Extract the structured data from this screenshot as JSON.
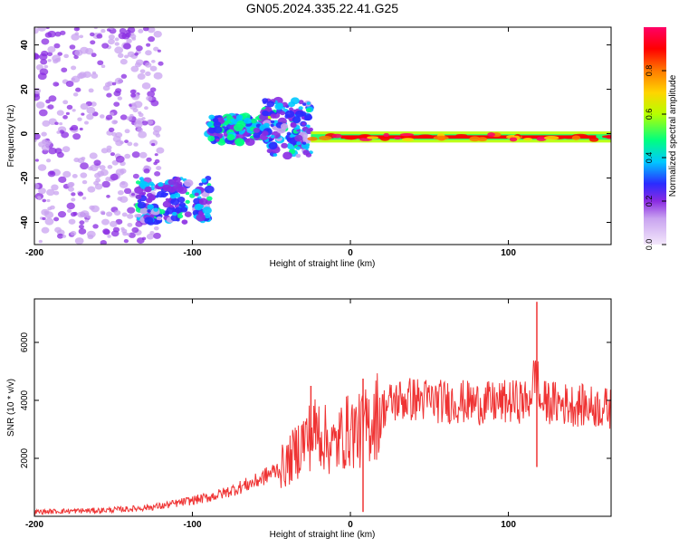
{
  "title": "GN05.2024.335.22.41.G25",
  "colors": {
    "signal_line": "#ef3333",
    "background": "#ffffff",
    "axis": "#000000",
    "colormap": [
      "#f3e7fb",
      "#c9a3f0",
      "#8a2be2",
      "#2b2bff",
      "#00c8ff",
      "#00ff7f",
      "#b6ff00",
      "#ffd400",
      "#ff7a00",
      "#ff0000",
      "#ff0066"
    ]
  },
  "chart_data": [
    {
      "type": "heatmap",
      "title": "GN05.2024.335.22.41.G25",
      "xlabel": "Height of straight line (km)",
      "ylabel": "Frequency (Hz)",
      "xlim": [
        -200,
        165
      ],
      "ylim": [
        -50,
        48
      ],
      "x_ticks": [
        -200,
        -100,
        0,
        100
      ],
      "y_ticks": [
        -40,
        -20,
        0,
        20,
        40
      ],
      "colorbar": {
        "label": "Normalized spectral amplitude",
        "range": [
          0,
          1
        ],
        "ticks": [
          "0.0",
          "0.2",
          "0.4",
          "0.6",
          "0.8"
        ],
        "tick_values": [
          0,
          0.2,
          0.4,
          0.6,
          0.8
        ]
      },
      "regions": [
        {
          "x": [
            -200,
            -120
          ],
          "y": [
            -50,
            48
          ],
          "amplitude": 0.1,
          "note": "scattered noise"
        },
        {
          "x": [
            -135,
            -88
          ],
          "y": [
            -40,
            -20
          ],
          "amplitude": 0.3
        },
        {
          "x": [
            -90,
            -52
          ],
          "y": [
            -4,
            8
          ],
          "amplitude": 0.35
        },
        {
          "x": [
            -55,
            -25
          ],
          "y": [
            -10,
            15
          ],
          "amplitude": 0.3
        },
        {
          "x": [
            -25,
            165
          ],
          "y": [
            -4,
            1
          ],
          "amplitude": 0.95
        }
      ]
    },
    {
      "type": "line",
      "xlabel": "Height of straight line (km)",
      "ylabel": "SNR (10 * v/v)",
      "xlim": [
        -200,
        165
      ],
      "ylim": [
        0,
        7500
      ],
      "x_ticks": [
        -200,
        -100,
        0,
        100
      ],
      "y_ticks": [
        2000,
        4000,
        6000
      ],
      "series": [
        {
          "x": [
            -200,
            -180,
            -160,
            -140,
            -130,
            -120,
            -110,
            -100,
            -90,
            -80,
            -70,
            -60,
            -50,
            -40,
            -35,
            -30,
            -25,
            -20,
            -15,
            -10,
            -5,
            0,
            5,
            10,
            15,
            20,
            25,
            30,
            40,
            50,
            60,
            70,
            80,
            90,
            100,
            105,
            110,
            112,
            115,
            118,
            120,
            125,
            130,
            140,
            150,
            160,
            165
          ],
          "y": [
            150,
            180,
            200,
            250,
            300,
            350,
            450,
            550,
            650,
            800,
            1000,
            1200,
            1500,
            1800,
            2200,
            2600,
            2800,
            3000,
            2600,
            2400,
            2800,
            3000,
            2900,
            3100,
            3400,
            3700,
            3900,
            4000,
            4050,
            4000,
            3950,
            3950,
            3900,
            3900,
            3950,
            3950,
            4000,
            3800,
            4500,
            5000,
            3900,
            3950,
            3900,
            3850,
            3800,
            3750,
            3700
          ]
        }
      ],
      "spikes": [
        {
          "x": -25,
          "y": 4500
        },
        {
          "x": 8,
          "y": 4750
        },
        {
          "x": 8,
          "y": 150
        },
        {
          "x": 118,
          "y": 7400
        },
        {
          "x": 118,
          "y": 1700
        }
      ]
    }
  ]
}
